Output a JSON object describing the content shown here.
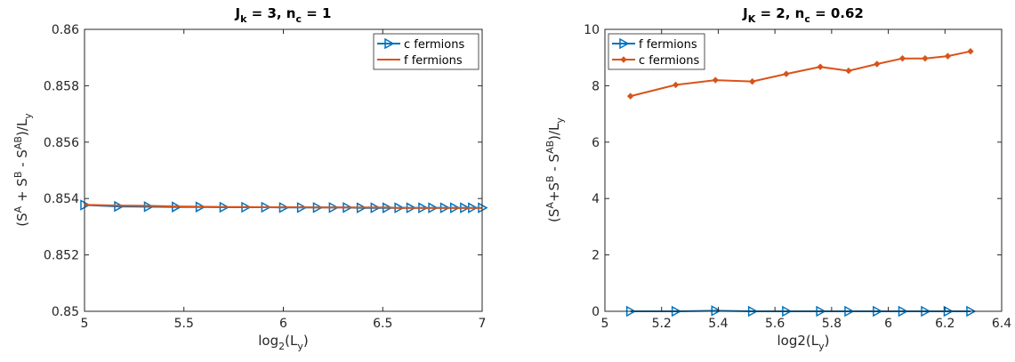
{
  "chart_data": [
    {
      "type": "line",
      "title": "J_k = 3, n_c = 1",
      "title_main": "J",
      "title_sub1": "k",
      "title_mid": " = 3, n",
      "title_sub2": "c",
      "title_end": " = 1",
      "xlabel": "log_2(L_y)",
      "ylabel": "(S^A + S^B - S^AB)/L_y",
      "xlim": [
        5,
        7
      ],
      "ylim": [
        0.85,
        0.86
      ],
      "xticks": [
        "5",
        "5.5",
        "6",
        "6.5",
        "7"
      ],
      "yticks": [
        "0.85",
        "0.852",
        "0.854",
        "0.856",
        "0.858",
        "0.86"
      ],
      "xtick_values": [
        5,
        5.5,
        6,
        6.5,
        7
      ],
      "ytick_values": [
        0.85,
        0.852,
        0.854,
        0.856,
        0.858,
        0.86
      ],
      "legend_position": "top-right",
      "series": [
        {
          "name": "c fermions",
          "color": "#0072BD",
          "marker": "triangle-right",
          "x": [
            5.0,
            5.17,
            5.32,
            5.46,
            5.58,
            5.7,
            5.81,
            5.91,
            6.0,
            6.09,
            6.17,
            6.25,
            6.32,
            6.39,
            6.46,
            6.52,
            6.58,
            6.64,
            6.7,
            6.75,
            6.81,
            6.86,
            6.91,
            6.95,
            7.0
          ],
          "y": [
            0.85377,
            0.85372,
            0.85371,
            0.8537,
            0.8537,
            0.85369,
            0.85369,
            0.85369,
            0.85368,
            0.85368,
            0.85368,
            0.85368,
            0.85368,
            0.85367,
            0.85367,
            0.85367,
            0.85367,
            0.85367,
            0.85367,
            0.85367,
            0.85367,
            0.85367,
            0.85367,
            0.85367,
            0.85367
          ]
        },
        {
          "name": "f fermions",
          "color": "#D95319",
          "marker": "none",
          "x": [
            5.0,
            5.17,
            5.32,
            5.46,
            5.58,
            5.7,
            5.81,
            5.91,
            6.0,
            6.09,
            6.17,
            6.25,
            6.32,
            6.39,
            6.46,
            6.52,
            6.58,
            6.64,
            6.7,
            6.75,
            6.81,
            6.86,
            6.91,
            6.95,
            7.0
          ],
          "y": [
            0.85378,
            0.85375,
            0.85374,
            0.85372,
            0.85371,
            0.8537,
            0.8537,
            0.85369,
            0.85369,
            0.85369,
            0.85368,
            0.85368,
            0.85368,
            0.85368,
            0.85368,
            0.85368,
            0.85367,
            0.85367,
            0.85367,
            0.85367,
            0.85367,
            0.85367,
            0.85367,
            0.85367,
            0.85367
          ]
        }
      ]
    },
    {
      "type": "line",
      "title": "J_K = 2, n_c = 0.62",
      "title_main": "J",
      "title_sub1": "K",
      "title_mid": " = 2, n",
      "title_sub2": "c",
      "title_end": " = 0.62",
      "xlabel": "log2(L_y)",
      "ylabel": "(S^A+S^B - S^AB)/L_y",
      "xlim": [
        5,
        6.4
      ],
      "ylim": [
        0,
        10
      ],
      "xticks": [
        "5",
        "5.2",
        "5.4",
        "5.6",
        "5.8",
        "6",
        "6.2",
        "6.4"
      ],
      "yticks": [
        "0",
        "2",
        "4",
        "6",
        "8",
        "10"
      ],
      "xtick_values": [
        5,
        5.2,
        5.4,
        5.6,
        5.8,
        6,
        6.2,
        6.4
      ],
      "ytick_values": [
        0,
        2,
        4,
        6,
        8,
        10
      ],
      "legend_position": "top-left",
      "series": [
        {
          "name": "f fermions",
          "color": "#0072BD",
          "marker": "triangle-right",
          "x": [
            5.09,
            5.25,
            5.39,
            5.52,
            5.64,
            5.76,
            5.86,
            5.96,
            6.05,
            6.13,
            6.21,
            6.29
          ],
          "y": [
            0.0,
            0.0,
            0.02,
            0.0,
            0.0,
            0.0,
            0.0,
            0.0,
            0.0,
            0.0,
            0.0,
            0.0
          ]
        },
        {
          "name": "c fermions",
          "color": "#D95319",
          "marker": "diamond",
          "x": [
            5.09,
            5.25,
            5.39,
            5.52,
            5.64,
            5.76,
            5.86,
            5.96,
            6.05,
            6.13,
            6.21,
            6.29
          ],
          "y": [
            7.63,
            8.03,
            8.2,
            8.15,
            8.42,
            8.67,
            8.53,
            8.77,
            8.97,
            8.97,
            9.05,
            9.22
          ]
        }
      ]
    }
  ]
}
